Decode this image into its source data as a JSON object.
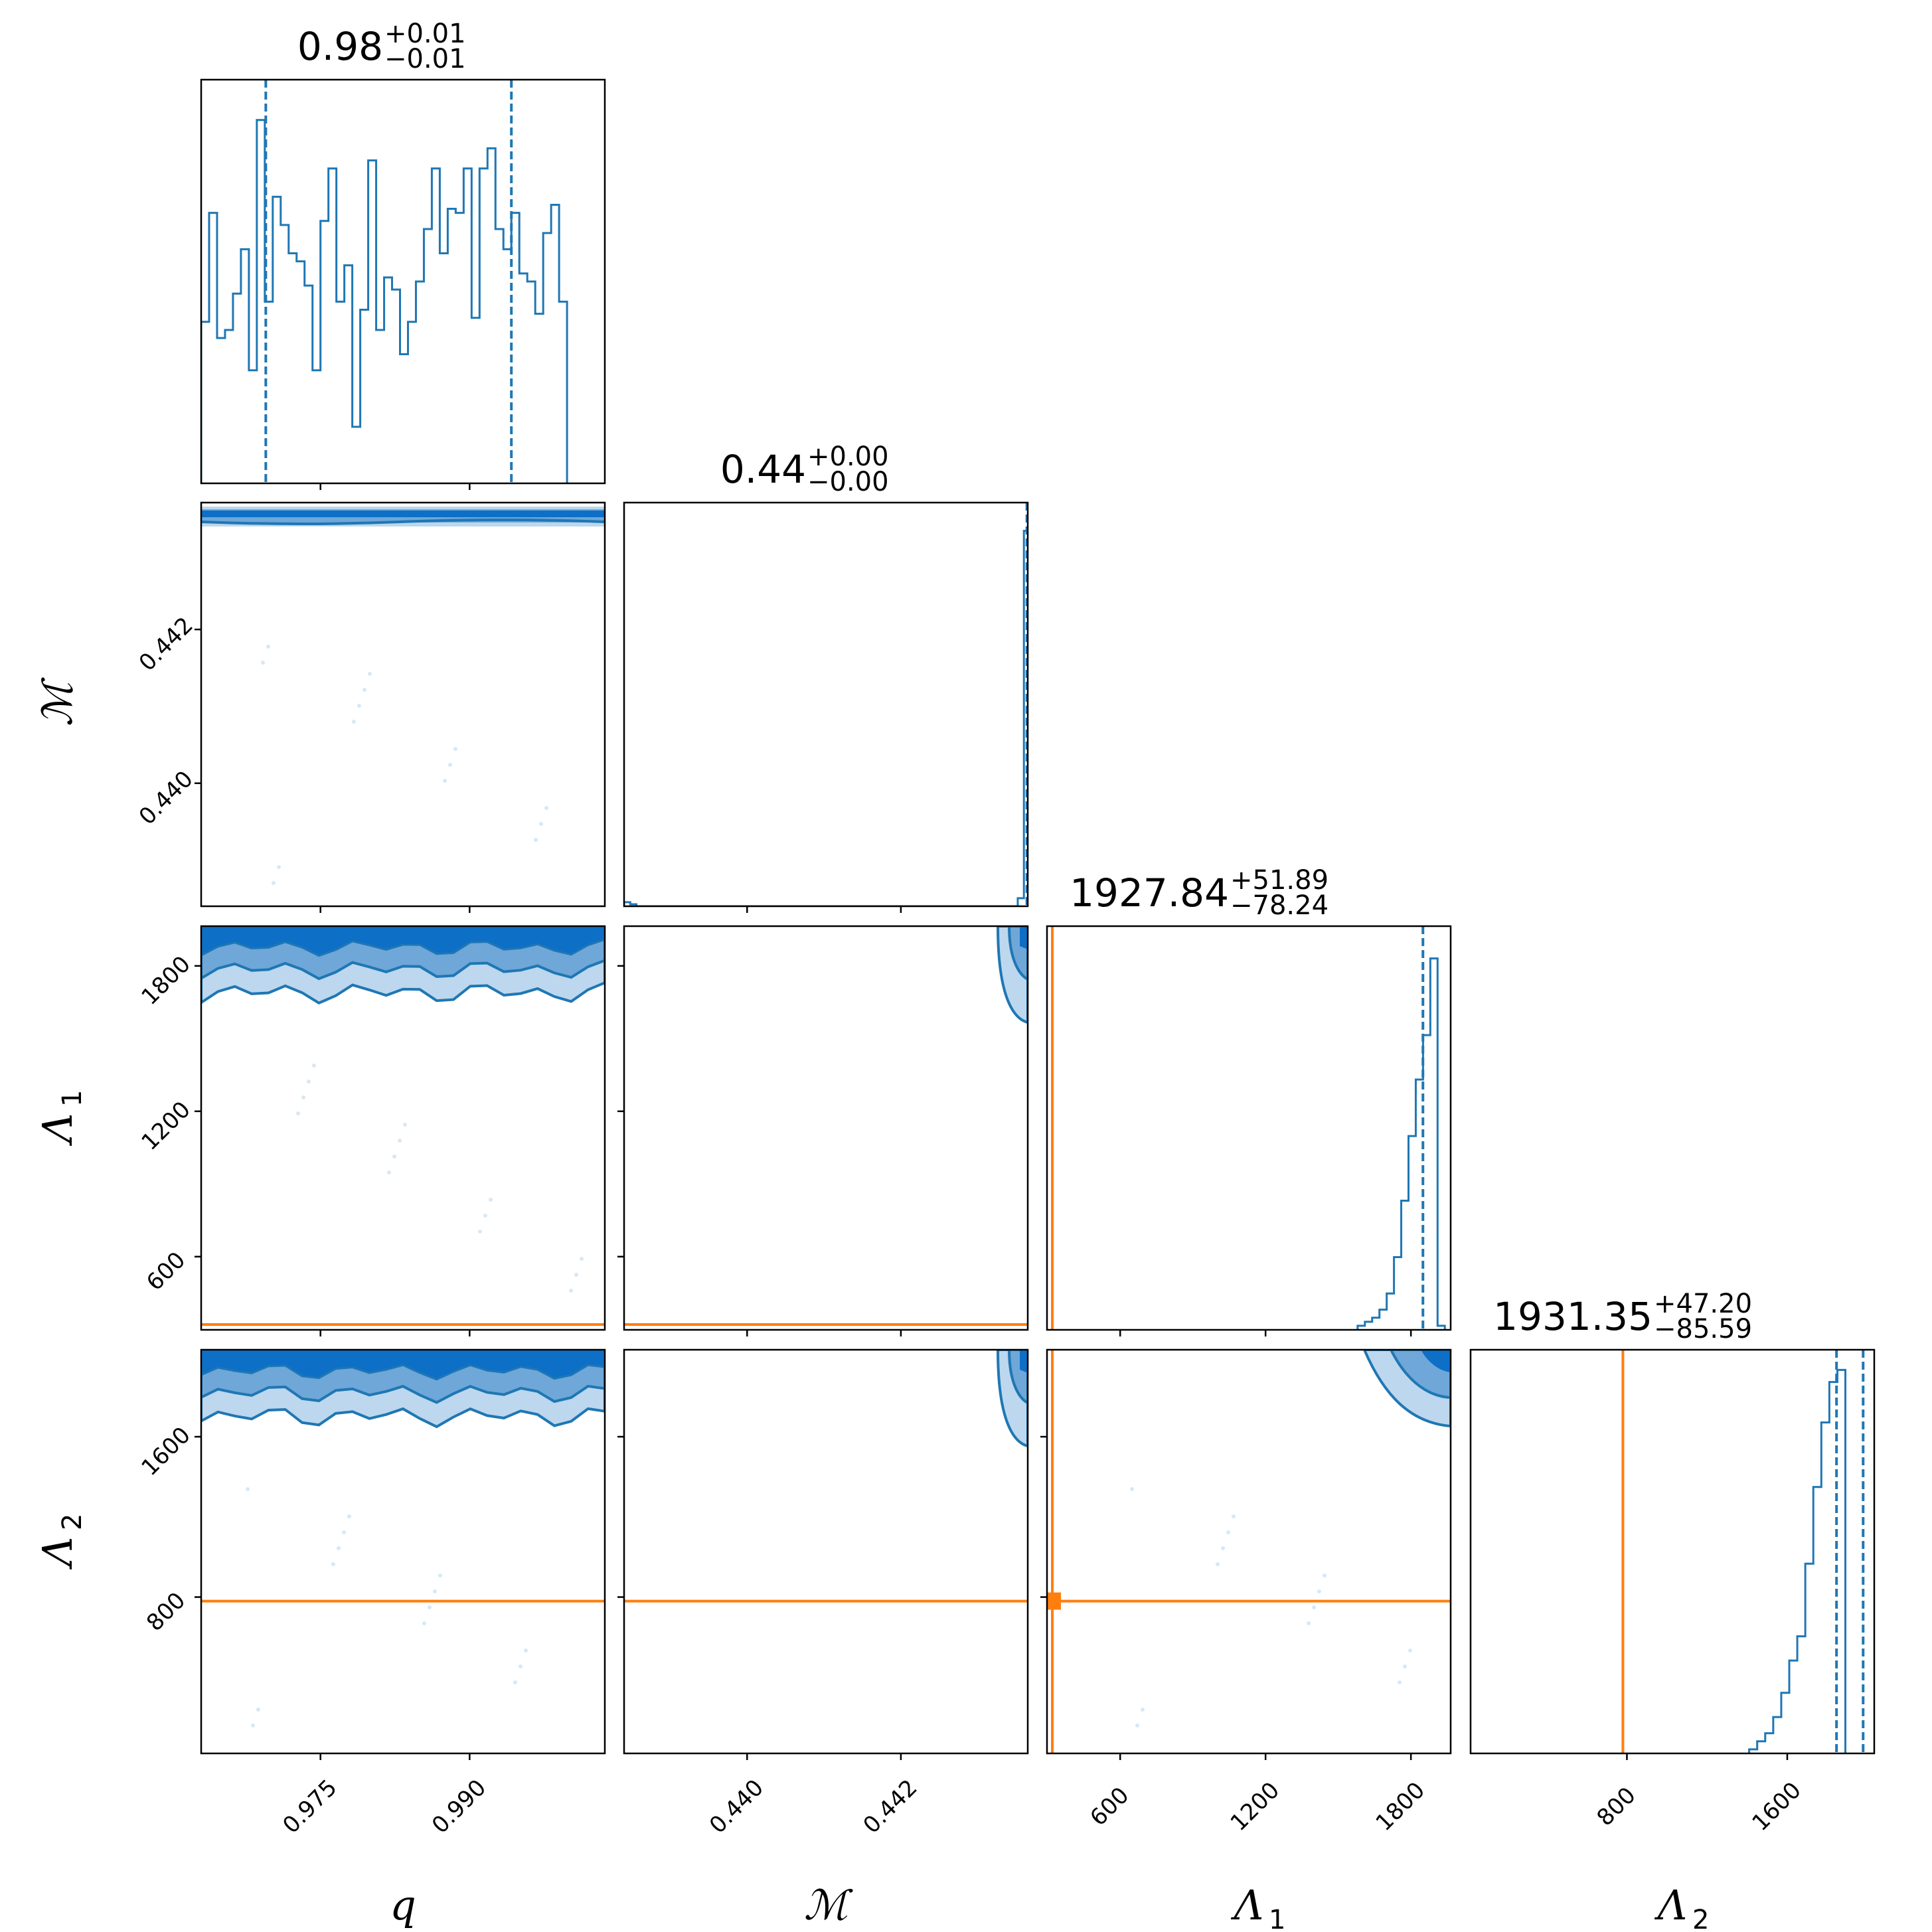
{
  "chart_data": {
    "type": "corner",
    "parameters": [
      {
        "key": "q",
        "label": "q",
        "sub": "",
        "range": [
          0.963,
          1.0036
        ],
        "ticks": [
          0.975,
          0.99
        ],
        "tick_labels": [
          "0.975",
          "0.990"
        ]
      },
      {
        "key": "mc",
        "label": "ℳ",
        "sub": "",
        "range": [
          0.4384,
          0.44365
        ],
        "ticks": [
          0.44,
          0.442
        ],
        "tick_labels": [
          "0.440",
          "0.442"
        ]
      },
      {
        "key": "lambda1",
        "label": "Λ",
        "sub": "1",
        "range": [
          298,
          1964
        ],
        "ticks": [
          600,
          1200,
          1800
        ],
        "tick_labels": [
          "600",
          "1200",
          "1800"
        ]
      },
      {
        "key": "lambda2",
        "label": "Λ",
        "sub": "2",
        "range": [
          20,
          2034
        ],
        "ticks": [
          800,
          1600
        ],
        "tick_labels": [
          "800",
          "1600"
        ]
      }
    ],
    "titles": [
      {
        "value": "0.98",
        "plus": "+0.01",
        "minus": "−0.01"
      },
      {
        "value": "0.44",
        "plus": "+0.00",
        "minus": "−0.00"
      },
      {
        "value": "1927.84",
        "plus": "+51.89",
        "minus": "−78.24"
      },
      {
        "value": "1931.35",
        "plus": "+47.20",
        "minus": "−85.59"
      }
    ],
    "histograms": [
      {
        "quantiles": [
          0.9695,
          0.9942
        ],
        "bin_width": 0.0008,
        "counts": [
          0.4,
          0.67,
          0.36,
          0.38,
          0.47,
          0.58,
          0.28,
          0.9,
          0.45,
          0.71,
          0.64,
          0.57,
          0.55,
          0.49,
          0.28,
          0.65,
          0.78,
          0.45,
          0.54,
          0.14,
          0.43,
          0.8,
          0.38,
          0.51,
          0.48,
          0.32,
          0.4,
          0.5,
          0.63,
          0.78,
          0.57,
          0.68,
          0.67,
          0.78,
          0.41,
          0.78,
          0.83,
          0.63,
          0.58,
          0.67,
          0.52,
          0.5,
          0.42,
          0.62,
          0.69,
          0.45
        ]
      },
      {
        "quantiles": [
          0.44364,
          0.44364
        ],
        "bin_width": 8e-05,
        "counts": [
          0.01,
          0.005,
          0,
          0,
          0,
          0,
          0,
          0,
          0,
          0,
          0,
          0,
          0,
          0,
          0,
          0,
          0,
          0,
          0,
          0,
          0,
          0,
          0,
          0,
          0,
          0,
          0,
          0,
          0,
          0,
          0,
          0,
          0,
          0,
          0,
          0,
          0,
          0,
          0,
          0,
          0,
          0,
          0,
          0,
          0,
          0,
          0,
          0,
          0,
          0,
          0,
          0,
          0,
          0,
          0,
          0,
          0,
          0,
          0,
          0,
          0,
          0,
          0,
          0,
          0.02,
          0.93
        ]
      },
      {
        "quantiles": [
          1849.6,
          1979.7
        ],
        "bin_width": 30,
        "start": 1580,
        "counts": [
          0.01,
          0.02,
          0.03,
          0.05,
          0.09,
          0.18,
          0.32,
          0.48,
          0.62,
          0.73,
          0.92,
          0.01
        ]
      },
      {
        "quantiles": [
          1845.8,
          1978.6
        ],
        "bin_width": 40,
        "start": 1410,
        "counts": [
          0.01,
          0.03,
          0.05,
          0.09,
          0.15,
          0.23,
          0.29,
          0.47,
          0.66,
          0.82,
          0.92,
          0.95
        ]
      }
    ],
    "truth": {
      "q": null,
      "mc": null,
      "lambda1": 320,
      "lambda2": 780
    },
    "contour_tops": {
      "lambda1_vs_q": [
        1780,
        1790,
        1700
      ],
      "lambda2_vs_q": [
        1830,
        1810,
        1640
      ],
      "lambda2_vs_lambda1_corner": [
        1755,
        1950
      ],
      "lambda_vs_mc_corner": [
        0.44355,
        1720
      ]
    },
    "colors": {
      "posterior": "#1f77b4",
      "contour_dark": "#0d6fc6",
      "contour_mid": "#6ea7d8",
      "contour_light": "#bcd7ee",
      "truth": "#ff7f0e"
    }
  }
}
